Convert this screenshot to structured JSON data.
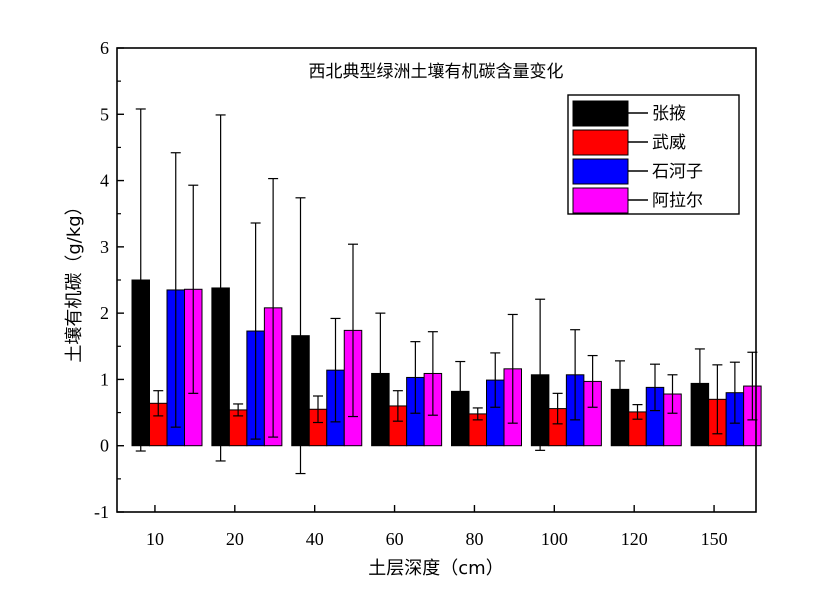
{
  "chart_data": {
    "type": "bar",
    "title": "西北典型绿洲土壤有机碳含量变化",
    "xlabel": "土层深度（cm）",
    "ylabel": "土壤有机碳（g/kg）",
    "ylim": [
      -1,
      6
    ],
    "yticks": [
      -1,
      0,
      1,
      2,
      3,
      4,
      5,
      6
    ],
    "categories": [
      "10",
      "20",
      "40",
      "60",
      "80",
      "100",
      "120",
      "150"
    ],
    "legend_position": "top-right",
    "series": [
      {
        "name": "张掖",
        "color": "#000000",
        "values": [
          2.5,
          2.38,
          1.66,
          1.09,
          0.82,
          1.07,
          0.85,
          0.94
        ],
        "errors": [
          2.58,
          2.61,
          2.08,
          0.91,
          0.45,
          1.14,
          0.43,
          0.52
        ]
      },
      {
        "name": "武威",
        "color": "#ff0000",
        "values": [
          0.64,
          0.54,
          0.55,
          0.6,
          0.48,
          0.56,
          0.51,
          0.7
        ],
        "errors": [
          0.19,
          0.09,
          0.2,
          0.23,
          0.09,
          0.23,
          0.11,
          0.52
        ]
      },
      {
        "name": "石河子",
        "color": "#0000ff",
        "values": [
          2.35,
          1.73,
          1.14,
          1.03,
          0.99,
          1.07,
          0.88,
          0.8
        ],
        "errors": [
          2.07,
          1.63,
          0.78,
          0.54,
          0.41,
          0.68,
          0.35,
          0.46
        ]
      },
      {
        "name": "阿拉尔",
        "color": "#ff00ff",
        "values": [
          2.36,
          2.08,
          1.74,
          1.09,
          1.16,
          0.97,
          0.78,
          0.9
        ],
        "errors": [
          1.57,
          1.95,
          1.3,
          0.63,
          0.82,
          0.39,
          0.29,
          0.51
        ]
      }
    ]
  }
}
